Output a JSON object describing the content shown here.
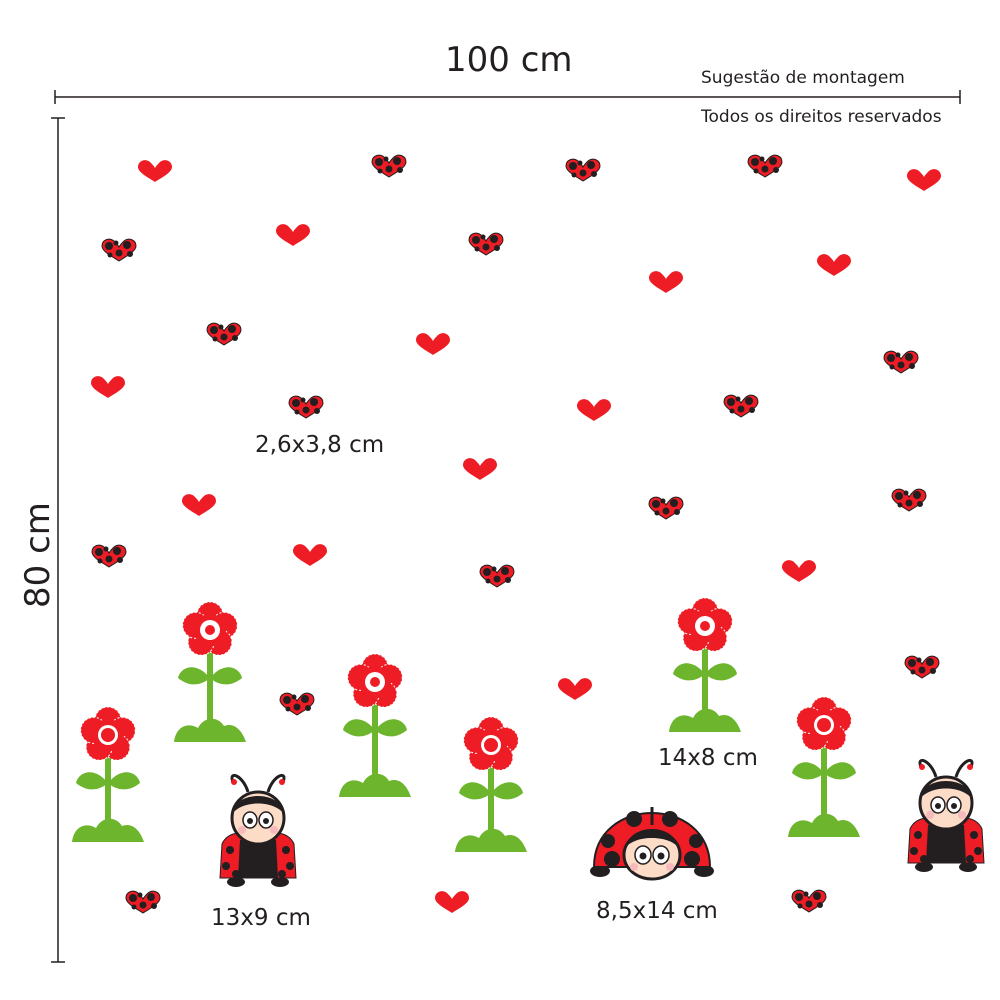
{
  "dimensions": {
    "width": "100 cm",
    "height": "80 cm"
  },
  "notes": {
    "line1": "Sugestão de montagem",
    "line2": "Todos os direitos reservados"
  },
  "sizes": {
    "hearts": "2,6x3,8 cm",
    "ladybug_sitting": "13x9 cm",
    "flower": "14x8 cm",
    "ladybug_dome": "8,5x14 cm"
  },
  "colors": {
    "red": "#ee1c25",
    "black": "#231f20",
    "green": "#6cb52d",
    "skin": "#fcdcc7"
  },
  "icons": [
    "heart-icon",
    "dotted-heart-icon",
    "flower-icon",
    "ladybug-icon"
  ]
}
